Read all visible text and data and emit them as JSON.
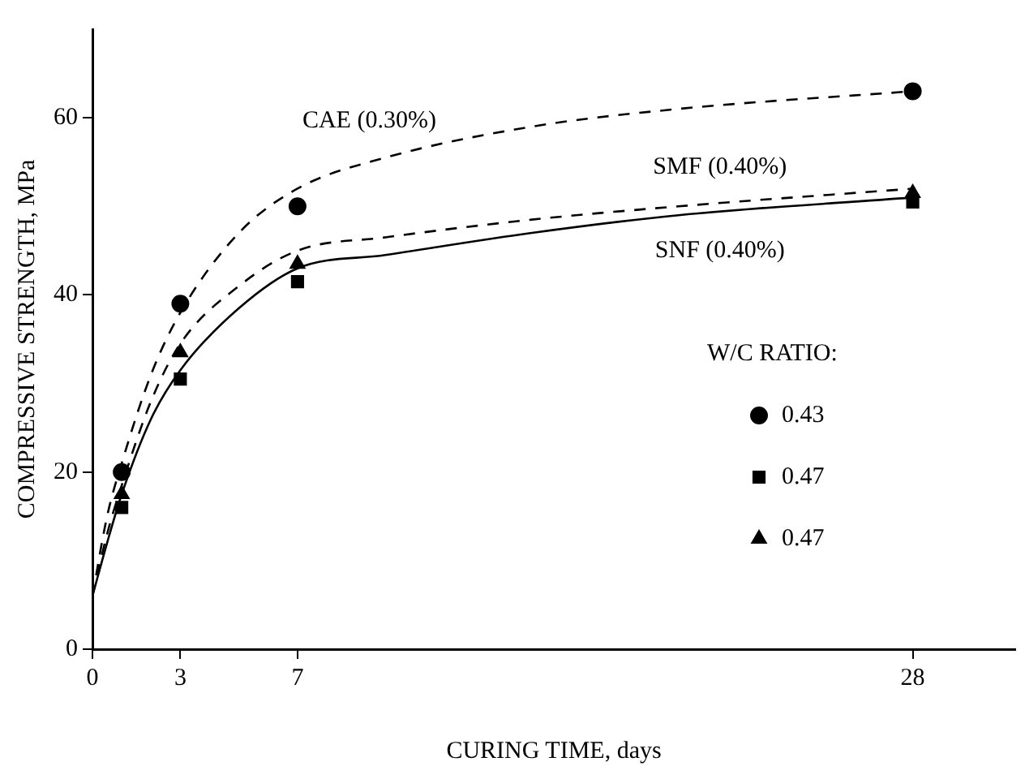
{
  "chart_data": {
    "type": "scatter",
    "xlabel": "CURING TIME, days",
    "ylabel": "COMPRESSIVE STRENGTH, MPa",
    "legend_title": "W/C RATIO:",
    "legend": "right",
    "grid": false,
    "xlim": [
      0,
      31.5
    ],
    "xticks": [
      0,
      3,
      7,
      28
    ],
    "ylim": [
      0,
      70
    ],
    "yticks": [
      0,
      20,
      40,
      60
    ],
    "series": [
      {
        "name": "CAE (0.30%)",
        "type": "line",
        "marker": "none",
        "line_style": "dashed",
        "color": "#000000",
        "x": [
          0,
          0.5,
          1,
          2,
          3,
          5,
          7,
          10,
          15,
          20,
          28
        ],
        "values": [
          6,
          15,
          21,
          31,
          38,
          47,
          52,
          55.5,
          59,
          61,
          63
        ]
      },
      {
        "name": "SMF (0.40%)",
        "type": "line",
        "marker": "none",
        "line_style": "dashed",
        "color": "#000000",
        "x": [
          0,
          0.5,
          1,
          2,
          3,
          5,
          7,
          10,
          15,
          20,
          28
        ],
        "values": [
          6,
          13,
          18.5,
          28,
          34.5,
          41,
          45,
          46.5,
          48.5,
          50,
          52
        ]
      },
      {
        "name": "SNF (0.40%)",
        "type": "line",
        "marker": "none",
        "line_style": "solid",
        "color": "#000000",
        "x": [
          0,
          0.5,
          1,
          2,
          3,
          5,
          7,
          10,
          15,
          20,
          28
        ],
        "values": [
          6,
          12,
          17.5,
          26,
          31.5,
          38.5,
          43,
          44.5,
          47,
          49,
          51
        ]
      },
      {
        "name": "0.43",
        "type": "scatter",
        "marker": "circle",
        "color": "#000000",
        "x": [
          1,
          3,
          7,
          28
        ],
        "values": [
          20,
          39,
          50,
          63
        ]
      },
      {
        "name": "0.47",
        "type": "scatter",
        "marker": "square",
        "color": "#000000",
        "x": [
          1,
          3,
          7,
          28
        ],
        "values": [
          16,
          30.5,
          41.5,
          50.5
        ]
      },
      {
        "name": "0.47",
        "type": "scatter",
        "marker": "triangle",
        "color": "#000000",
        "x": [
          1,
          3,
          7,
          28
        ],
        "values": [
          17.5,
          33.5,
          43.5,
          51.5
        ]
      }
    ]
  }
}
